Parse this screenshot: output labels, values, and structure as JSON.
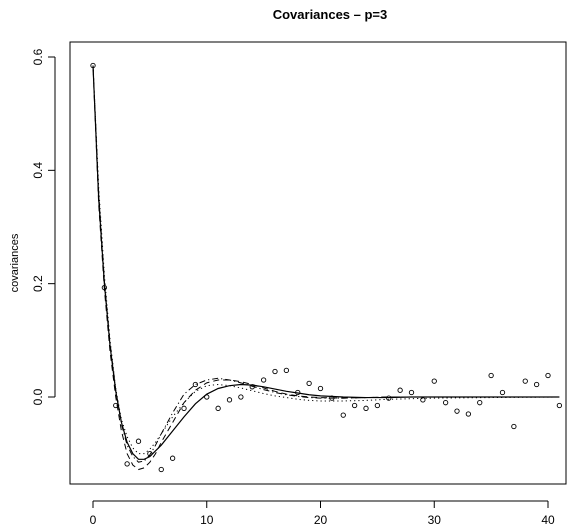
{
  "chart_data": {
    "type": "line",
    "title": "Covariances – p=3",
    "xlabel": "",
    "ylabel": "covariances",
    "xlim": [
      0,
      41
    ],
    "ylim": [
      -0.15,
      0.62
    ],
    "x_ticks": [
      0,
      10,
      20,
      30,
      40
    ],
    "x_tick_labels": [
      "0",
      "10",
      "20",
      "30",
      "40"
    ],
    "y_ticks": [
      0.0,
      0.2,
      0.4,
      0.6
    ],
    "y_tick_labels": [
      "0.0",
      "0.2",
      "0.4",
      "0.6"
    ],
    "grid": false,
    "points": {
      "marker": "open-circle",
      "x": [
        0,
        1,
        2,
        3,
        4,
        5,
        6,
        7,
        8,
        9,
        10,
        11,
        12,
        13,
        14,
        15,
        16,
        17,
        18,
        19,
        20,
        21,
        22,
        23,
        24,
        25,
        26,
        27,
        28,
        29,
        30,
        31,
        32,
        33,
        34,
        35,
        36,
        37,
        38,
        39,
        40,
        41
      ],
      "y": [
        0.585,
        0.193,
        -0.015,
        -0.118,
        -0.078,
        -0.1,
        -0.128,
        -0.108,
        -0.02,
        0.022,
        0.0,
        -0.02,
        -0.005,
        0.0,
        0.018,
        0.03,
        0.045,
        0.047,
        0.008,
        0.024,
        0.015,
        -0.002,
        -0.032,
        -0.015,
        -0.02,
        -0.015,
        -0.002,
        0.012,
        0.008,
        -0.005,
        0.028,
        -0.01,
        -0.025,
        -0.03,
        -0.01,
        0.038,
        0.008,
        -0.052,
        0.028,
        0.022,
        0.038,
        -0.015
      ]
    },
    "series": [
      {
        "line_style": "solid",
        "x": [
          0,
          0.5,
          1,
          1.5,
          2,
          2.5,
          3,
          3.5,
          4,
          4.5,
          5,
          5.5,
          6,
          7,
          8,
          9,
          10,
          11,
          12,
          13,
          14,
          15,
          16,
          17,
          18,
          19,
          20,
          22,
          24,
          26,
          28,
          30,
          35,
          41
        ],
        "y": [
          0.585,
          0.35,
          0.2,
          0.09,
          0.01,
          -0.045,
          -0.08,
          -0.1,
          -0.11,
          -0.11,
          -0.105,
          -0.095,
          -0.085,
          -0.06,
          -0.035,
          -0.012,
          0.005,
          0.015,
          0.02,
          0.022,
          0.021,
          0.018,
          0.014,
          0.01,
          0.007,
          0.004,
          0.002,
          0.0,
          -0.001,
          -0.001,
          0.0,
          0.0,
          0.0,
          0.0
        ]
      },
      {
        "line_style": "dashed",
        "x": [
          0,
          0.5,
          1,
          1.5,
          2,
          2.5,
          3,
          3.5,
          4,
          4.5,
          5,
          5.5,
          6,
          7,
          8,
          9,
          10,
          11,
          12,
          13,
          14,
          15,
          16,
          17,
          18,
          19,
          20,
          22,
          24,
          26,
          28,
          30,
          35,
          41
        ],
        "y": [
          0.585,
          0.34,
          0.19,
          0.08,
          0.0,
          -0.06,
          -0.1,
          -0.12,
          -0.128,
          -0.125,
          -0.115,
          -0.1,
          -0.08,
          -0.045,
          -0.01,
          0.012,
          0.025,
          0.03,
          0.03,
          0.027,
          0.022,
          0.016,
          0.01,
          0.005,
          0.002,
          0.0,
          -0.001,
          -0.002,
          -0.001,
          0.0,
          0.0,
          0.0,
          0.0,
          0.0
        ]
      },
      {
        "line_style": "dotted",
        "x": [
          0,
          0.5,
          1,
          1.5,
          2,
          2.5,
          3,
          3.5,
          4,
          4.5,
          5,
          5.5,
          6,
          7,
          8,
          9,
          10,
          11,
          12,
          13,
          14,
          15,
          16,
          17,
          18,
          19,
          20,
          22,
          24,
          26,
          28,
          30,
          35,
          41
        ],
        "y": [
          0.585,
          0.37,
          0.215,
          0.1,
          0.015,
          -0.04,
          -0.07,
          -0.09,
          -0.1,
          -0.1,
          -0.092,
          -0.08,
          -0.065,
          -0.035,
          -0.01,
          0.01,
          0.02,
          0.022,
          0.02,
          0.016,
          0.011,
          0.006,
          0.002,
          -0.001,
          -0.004,
          -0.006,
          -0.007,
          -0.007,
          -0.006,
          -0.004,
          -0.003,
          -0.002,
          -0.001,
          0.0
        ]
      },
      {
        "line_style": "dotdash",
        "x": [
          0,
          0.5,
          1,
          1.5,
          2,
          2.5,
          3,
          3.5,
          4,
          4.5,
          5,
          5.5,
          6,
          7,
          8,
          9,
          10,
          11,
          12,
          13,
          14,
          15,
          16,
          17,
          18,
          19,
          20,
          22,
          24,
          26,
          28,
          30,
          35,
          41
        ],
        "y": [
          0.585,
          0.36,
          0.205,
          0.095,
          0.012,
          -0.048,
          -0.085,
          -0.105,
          -0.115,
          -0.113,
          -0.102,
          -0.085,
          -0.065,
          -0.028,
          0.005,
          0.022,
          0.03,
          0.033,
          0.03,
          0.025,
          0.019,
          0.013,
          0.008,
          0.004,
          0.001,
          -0.001,
          -0.002,
          -0.002,
          -0.001,
          0.0,
          0.0,
          0.0,
          0.0,
          0.0
        ]
      }
    ]
  }
}
